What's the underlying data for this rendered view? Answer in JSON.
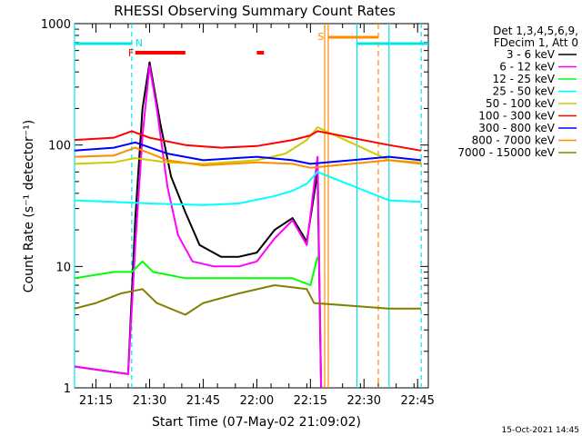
{
  "chart_data": {
    "type": "line",
    "title": "RHESSI Observing Summary Count Rates",
    "xlabel": "Start Time (07-May-02 21:09:02)",
    "ylabel": "Count Rate (s⁻¹ detector⁻¹)",
    "yscale": "log",
    "ylim": [
      1,
      1000
    ],
    "xlim": [
      "21:09",
      "22:48"
    ],
    "x_ticks": [
      "21:15",
      "21:30",
      "21:45",
      "22:00",
      "22:15",
      "22:30",
      "22:45"
    ],
    "y_ticks": [
      "1",
      "10",
      "100",
      "1000"
    ],
    "legend_header": [
      "Det 1,3,4,5,6,9,",
      "FDecim 1, Att 0"
    ],
    "legend_position": "right",
    "footer_date": "15-Oct-2021 14:45",
    "markers": [
      {
        "label": "N",
        "color": "#00e5e5"
      },
      {
        "label": "F",
        "color": "#ff0000"
      },
      {
        "label": "S",
        "color": "#ff8c00"
      }
    ],
    "series": [
      {
        "name": "3 - 6 keV",
        "color": "#000000",
        "points": [
          [
            "21:09",
            1.5
          ],
          [
            "21:24",
            1.3
          ],
          [
            "21:26",
            25
          ],
          [
            "21:28",
            200
          ],
          [
            "21:30",
            480
          ],
          [
            "21:33",
            150
          ],
          [
            "21:36",
            55
          ],
          [
            "21:40",
            28
          ],
          [
            "21:44",
            15
          ],
          [
            "21:50",
            12
          ],
          [
            "21:55",
            12
          ],
          [
            "22:00",
            13
          ],
          [
            "22:05",
            20
          ],
          [
            "22:10",
            25
          ],
          [
            "22:14",
            16
          ],
          [
            "22:17",
            60
          ],
          [
            "22:18",
            1
          ]
        ]
      },
      {
        "name": "6 - 12 keV",
        "color": "#ff00ff",
        "points": [
          [
            "21:09",
            1.5
          ],
          [
            "21:24",
            1.3
          ],
          [
            "21:26",
            15
          ],
          [
            "21:28",
            120
          ],
          [
            "21:30",
            450
          ],
          [
            "21:32",
            200
          ],
          [
            "21:35",
            45
          ],
          [
            "21:38",
            18
          ],
          [
            "21:42",
            11
          ],
          [
            "21:48",
            10
          ],
          [
            "21:55",
            10
          ],
          [
            "22:00",
            11
          ],
          [
            "22:05",
            17
          ],
          [
            "22:10",
            24
          ],
          [
            "22:14",
            15
          ],
          [
            "22:17",
            80
          ],
          [
            "22:18",
            1
          ]
        ]
      },
      {
        "name": "12 - 25 keV",
        "color": "#00ff00",
        "points": [
          [
            "21:09",
            8
          ],
          [
            "21:20",
            9
          ],
          [
            "21:25",
            9
          ],
          [
            "21:28",
            11
          ],
          [
            "21:31",
            9
          ],
          [
            "21:40",
            8
          ],
          [
            "21:50",
            8
          ],
          [
            "22:00",
            8
          ],
          [
            "22:10",
            8
          ],
          [
            "22:15",
            7
          ],
          [
            "22:17",
            12
          ]
        ]
      },
      {
        "name": "25 - 50 keV",
        "color": "#00ffff",
        "points": [
          [
            "21:09",
            35
          ],
          [
            "21:20",
            34
          ],
          [
            "21:30",
            33
          ],
          [
            "21:45",
            32
          ],
          [
            "21:55",
            33
          ],
          [
            "22:05",
            38
          ],
          [
            "22:10",
            42
          ],
          [
            "22:14",
            48
          ],
          [
            "22:17",
            60
          ],
          [
            "22:37",
            35
          ],
          [
            "22:46",
            34
          ]
        ]
      },
      {
        "name": "50 - 100 keV",
        "color": "#cccc00",
        "points": [
          [
            "21:09",
            70
          ],
          [
            "21:20",
            72
          ],
          [
            "21:26",
            78
          ],
          [
            "21:35",
            72
          ],
          [
            "21:45",
            70
          ],
          [
            "22:00",
            75
          ],
          [
            "22:08",
            85
          ],
          [
            "22:14",
            110
          ],
          [
            "22:17",
            140
          ],
          [
            "22:37",
            75
          ],
          [
            "22:46",
            72
          ]
        ]
      },
      {
        "name": "100 - 300 keV",
        "color": "#ff0000",
        "points": [
          [
            "21:09",
            110
          ],
          [
            "21:20",
            115
          ],
          [
            "21:25",
            130
          ],
          [
            "21:30",
            115
          ],
          [
            "21:40",
            100
          ],
          [
            "21:50",
            95
          ],
          [
            "22:00",
            98
          ],
          [
            "22:10",
            110
          ],
          [
            "22:15",
            120
          ],
          [
            "22:17",
            130
          ],
          [
            "22:37",
            100
          ],
          [
            "22:46",
            90
          ]
        ]
      },
      {
        "name": "300 - 800 keV",
        "color": "#0000ff",
        "points": [
          [
            "21:09",
            90
          ],
          [
            "21:20",
            95
          ],
          [
            "21:26",
            105
          ],
          [
            "21:35",
            85
          ],
          [
            "21:45",
            75
          ],
          [
            "22:00",
            80
          ],
          [
            "22:10",
            75
          ],
          [
            "22:15",
            70
          ],
          [
            "22:37",
            80
          ],
          [
            "22:46",
            75
          ]
        ]
      },
      {
        "name": "800 - 7000 keV",
        "color": "#ff8c00",
        "points": [
          [
            "21:09",
            80
          ],
          [
            "21:20",
            82
          ],
          [
            "21:26",
            95
          ],
          [
            "21:35",
            75
          ],
          [
            "21:45",
            68
          ],
          [
            "22:00",
            72
          ],
          [
            "22:10",
            70
          ],
          [
            "22:15",
            65
          ],
          [
            "22:37",
            75
          ],
          [
            "22:46",
            70
          ]
        ]
      },
      {
        "name": "7000 - 15000 keV",
        "color": "#808000",
        "points": [
          [
            "21:09",
            4.5
          ],
          [
            "21:15",
            5
          ],
          [
            "21:22",
            6
          ],
          [
            "21:28",
            6.5
          ],
          [
            "21:32",
            5
          ],
          [
            "21:40",
            4
          ],
          [
            "21:45",
            5
          ],
          [
            "21:55",
            6
          ],
          [
            "22:05",
            7
          ],
          [
            "22:14",
            6.5
          ],
          [
            "22:16",
            5
          ],
          [
            "22:37",
            4.5
          ],
          [
            "22:46",
            4.5
          ]
        ]
      }
    ]
  }
}
